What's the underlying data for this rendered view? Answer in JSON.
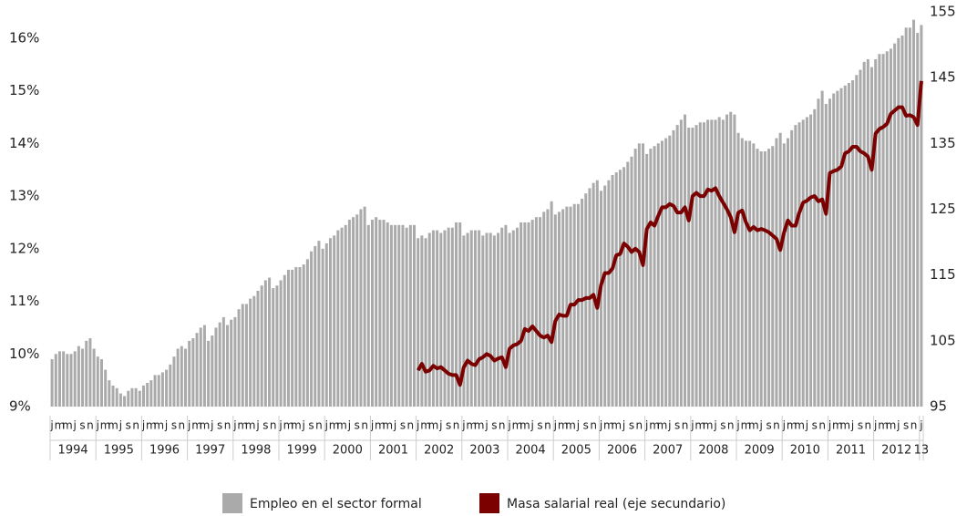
{
  "chart_data": {
    "type": "bar_line",
    "categories": [
      "j",
      null,
      "m",
      null,
      "m",
      null,
      "j",
      null,
      "s",
      null,
      "n",
      null,
      "j",
      null,
      "m",
      null,
      "m",
      null,
      "j",
      null,
      "s",
      null,
      "n",
      null,
      "j",
      null,
      "m",
      null,
      "m",
      null,
      "j",
      null,
      "s",
      null,
      "n",
      null,
      "j",
      null,
      "m",
      null,
      "m",
      null,
      "j",
      null,
      "s",
      null,
      "n",
      null,
      "j",
      null,
      "m",
      null,
      "m",
      null,
      "j",
      null,
      "s",
      null,
      "n",
      null,
      "j",
      null,
      "m",
      null,
      "m",
      null,
      "j",
      null,
      "s",
      null,
      "n",
      null,
      "j",
      null,
      "m",
      null,
      "m",
      null,
      "j",
      null,
      "s",
      null,
      "n",
      null,
      "j",
      null,
      "m",
      null,
      "m",
      null,
      "j",
      null,
      "s",
      null,
      "n",
      null,
      "j",
      null,
      "m",
      null,
      "m",
      null,
      "j",
      null,
      "s",
      null,
      "n",
      null,
      "j",
      null,
      "m",
      null,
      "m",
      null,
      "j",
      null,
      "s",
      null,
      "n",
      null,
      "j",
      null,
      "m",
      null,
      "m",
      null,
      "j",
      null,
      "s",
      null,
      "n",
      null,
      "j",
      null,
      "m",
      null,
      "m",
      null,
      "j",
      null,
      "s",
      null,
      "n",
      null,
      "j",
      null,
      "m",
      null,
      "m",
      null,
      "j",
      null,
      "s",
      null,
      "n",
      null,
      "j",
      null,
      "m",
      null,
      "m",
      null,
      "j",
      null,
      "s",
      null,
      "n",
      null,
      "j",
      null,
      "m",
      null,
      "m",
      null,
      "j",
      null,
      "s",
      null,
      "n",
      null,
      "j",
      null,
      "m",
      null,
      "m",
      null,
      "j",
      null,
      "s",
      null,
      "n",
      null,
      "j",
      null,
      "m",
      null,
      "m",
      null,
      "j",
      null,
      "s",
      null,
      "n",
      null,
      "j",
      null,
      "m",
      null,
      "m",
      null,
      "j",
      null,
      "s",
      null,
      "n",
      null,
      "j",
      null,
      "m",
      null,
      "m",
      null,
      "j",
      null,
      "s",
      null,
      "n",
      null,
      "j"
    ],
    "year_labels": [
      "1994",
      "1995",
      "1996",
      "1997",
      "1998",
      "1999",
      "2000",
      "2001",
      "2002",
      "2003",
      "2004",
      "2005",
      "2006",
      "2007",
      "2008",
      "2009",
      "2010",
      "2011",
      "2012",
      "13"
    ],
    "series": [
      {
        "name": "Empleo en el sector formal",
        "color": "#aaaaaa",
        "axis": "y",
        "values": [
          9.9,
          10.0,
          10.05,
          10.05,
          10.0,
          10.0,
          10.05,
          10.15,
          10.1,
          10.25,
          10.3,
          10.1,
          9.95,
          9.9,
          9.7,
          9.5,
          9.4,
          9.35,
          9.25,
          9.2,
          9.3,
          9.35,
          9.35,
          9.3,
          9.4,
          9.45,
          9.5,
          9.6,
          9.6,
          9.65,
          9.7,
          9.8,
          9.95,
          10.1,
          10.15,
          10.1,
          10.25,
          10.3,
          10.4,
          10.5,
          10.55,
          10.25,
          10.35,
          10.5,
          10.6,
          10.7,
          10.55,
          10.65,
          10.7,
          10.85,
          10.95,
          10.95,
          11.05,
          11.1,
          11.2,
          11.3,
          11.4,
          11.45,
          11.25,
          11.3,
          11.4,
          11.5,
          11.6,
          11.6,
          11.65,
          11.65,
          11.7,
          11.8,
          11.95,
          12.05,
          12.15,
          12.0,
          12.1,
          12.2,
          12.25,
          12.35,
          12.4,
          12.45,
          12.55,
          12.6,
          12.65,
          12.75,
          12.8,
          12.45,
          12.55,
          12.6,
          12.55,
          12.55,
          12.5,
          12.45,
          12.45,
          12.45,
          12.45,
          12.4,
          12.45,
          12.45,
          12.2,
          12.25,
          12.2,
          12.3,
          12.35,
          12.35,
          12.3,
          12.35,
          12.4,
          12.4,
          12.5,
          12.5,
          12.25,
          12.3,
          12.35,
          12.35,
          12.35,
          12.25,
          12.3,
          12.3,
          12.25,
          12.3,
          12.4,
          12.45,
          12.3,
          12.35,
          12.4,
          12.5,
          12.5,
          12.5,
          12.55,
          12.6,
          12.6,
          12.7,
          12.75,
          12.9,
          12.65,
          12.7,
          12.75,
          12.8,
          12.8,
          12.85,
          12.85,
          12.95,
          13.05,
          13.15,
          13.25,
          13.3,
          13.1,
          13.2,
          13.3,
          13.4,
          13.45,
          13.5,
          13.55,
          13.65,
          13.75,
          13.9,
          14.0,
          14.0,
          13.8,
          13.9,
          13.95,
          14.0,
          14.05,
          14.1,
          14.15,
          14.25,
          14.35,
          14.45,
          14.55,
          14.3,
          14.3,
          14.35,
          14.4,
          14.4,
          14.45,
          14.45,
          14.45,
          14.5,
          14.45,
          14.55,
          14.6,
          14.55,
          14.2,
          14.1,
          14.05,
          14.05,
          14.0,
          13.9,
          13.85,
          13.85,
          13.9,
          13.95,
          14.1,
          14.2,
          14.0,
          14.1,
          14.25,
          14.35,
          14.4,
          14.45,
          14.5,
          14.55,
          14.65,
          14.85,
          15.0,
          14.75,
          14.85,
          14.95,
          15.0,
          15.05,
          15.1,
          15.15,
          15.2,
          15.3,
          15.4,
          15.55,
          15.6,
          15.45,
          15.6,
          15.7,
          15.7,
          15.75,
          15.8,
          15.9,
          16.0,
          16.05,
          16.2,
          16.2,
          16.35,
          16.1,
          16.25
        ]
      },
      {
        "name": "Masa salarial real (eje secundario)",
        "color": "#7b0000",
        "axis": "y2",
        "values": [
          null,
          null,
          null,
          null,
          null,
          null,
          null,
          null,
          null,
          null,
          null,
          null,
          null,
          null,
          null,
          null,
          null,
          null,
          null,
          null,
          null,
          null,
          null,
          null,
          null,
          null,
          null,
          null,
          null,
          null,
          null,
          null,
          null,
          null,
          null,
          null,
          null,
          null,
          null,
          null,
          null,
          null,
          null,
          null,
          null,
          null,
          null,
          null,
          null,
          null,
          null,
          null,
          null,
          null,
          null,
          null,
          null,
          null,
          null,
          null,
          null,
          null,
          null,
          null,
          null,
          null,
          null,
          null,
          null,
          null,
          null,
          null,
          null,
          null,
          null,
          null,
          null,
          null,
          null,
          null,
          null,
          null,
          null,
          null,
          null,
          null,
          null,
          null,
          null,
          null,
          null,
          null,
          null,
          null,
          null,
          null,
          100.5,
          101.5,
          100.3,
          100.5,
          101.2,
          100.8,
          101,
          100.5,
          100,
          99.8,
          99.8,
          98.3,
          101,
          102,
          101.5,
          101.3,
          102.2,
          102.5,
          103,
          102.7,
          102,
          102.3,
          102.5,
          101,
          103.8,
          104.3,
          104.5,
          105,
          106.8,
          106.5,
          107.2,
          106.5,
          105.8,
          105.5,
          105.8,
          104.8,
          108,
          109,
          108.8,
          108.8,
          110.5,
          110.5,
          111.2,
          111.2,
          111.5,
          111.5,
          112,
          110,
          113.5,
          115.3,
          115.3,
          116,
          118,
          118.2,
          119.8,
          119.3,
          118.5,
          119,
          118.5,
          116.5,
          122,
          123,
          122.5,
          124,
          125.3,
          125.3,
          125.8,
          125.5,
          124.5,
          124.5,
          125.3,
          123.3,
          127,
          127.5,
          127,
          127,
          128,
          127.8,
          128.2,
          127,
          126,
          125,
          123.8,
          121.5,
          124.5,
          124.8,
          123,
          121.8,
          122.3,
          121.8,
          122,
          121.8,
          121.5,
          121,
          120.5,
          118.8,
          121.5,
          123.3,
          122.5,
          122.5,
          124.5,
          126,
          126.3,
          126.8,
          127,
          126.2,
          126.5,
          124.3,
          130.5,
          130.8,
          131,
          131.5,
          133.5,
          133.8,
          134.5,
          134.5,
          133.8,
          133.5,
          133,
          131,
          136.5,
          137.2,
          137.5,
          138,
          139.5,
          140,
          140.5,
          140.5,
          139.2,
          139.3,
          139,
          137.8,
          144.5
        ]
      }
    ],
    "ylim": [
      9,
      16.5
    ],
    "yticks": [
      {
        "value": 9,
        "label": "9%"
      },
      {
        "value": 10,
        "label": "10%"
      },
      {
        "value": 11,
        "label": "11%"
      },
      {
        "value": 12,
        "label": "12%"
      },
      {
        "value": 13,
        "label": "13%"
      },
      {
        "value": 14,
        "label": "14%"
      },
      {
        "value": 15,
        "label": "15%"
      },
      {
        "value": 16,
        "label": "16%"
      }
    ],
    "y2lim": [
      95,
      155
    ],
    "y2ticks": [
      95,
      105,
      115,
      125,
      135,
      145,
      155
    ],
    "grid": false
  }
}
